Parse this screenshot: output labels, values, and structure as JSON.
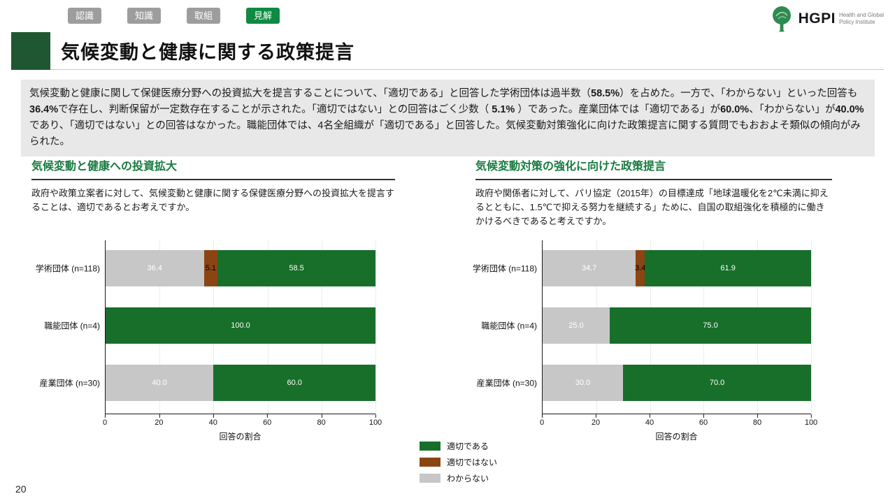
{
  "tabs": [
    {
      "id": "recognition",
      "label": "認識",
      "active": false
    },
    {
      "id": "knowledge",
      "label": "知識",
      "active": false
    },
    {
      "id": "initiatives",
      "label": "取組",
      "active": false
    },
    {
      "id": "views",
      "label": "見解",
      "active": true
    }
  ],
  "tab_colors": {
    "inactive": "#9d9d9d",
    "active": "#0e8a42"
  },
  "logo": {
    "name": "HGPI",
    "subtitle1": "Health and Global",
    "subtitle2": "Policy Institute",
    "icon": "tree-icon",
    "color": "#2e8b4f"
  },
  "title": "気候変動と健康に関する政策提言",
  "summary_segments": [
    {
      "t": "気候変動と健康に関して保健医療分野への投資拡大を提言することについて、「適切である」と回答した学術団体は過半数（",
      "b": false
    },
    {
      "t": "58.5%",
      "b": true
    },
    {
      "t": "）を占めた。一方で、「わからない」といった回答も",
      "b": false
    },
    {
      "t": "36.4%",
      "b": true
    },
    {
      "t": "で存在し、判断保留が一定数存在することが示された。「適切ではない」との回答はごく少数（ ",
      "b": false
    },
    {
      "t": "5.1%",
      "b": true
    },
    {
      "t": " ）であった。産業団体では「適切である」が",
      "b": false
    },
    {
      "t": "60.0%",
      "b": true
    },
    {
      "t": "、「わからない」が",
      "b": false
    },
    {
      "t": "40.0%",
      "b": true
    },
    {
      "t": "であり、「適切ではない」との回答はなかった。職能団体では、4名全組織が「適切である」と回答した。気候変動対策強化に向けた政策提言に関する質問でもおおよそ類似の傾向がみられた。",
      "b": false
    }
  ],
  "chart_data": [
    {
      "type": "bar",
      "orientation": "horizontal",
      "stacked": true,
      "title": "気候変動と健康への投資拡大",
      "description": "政府や政策立案者に対して、気候変動と健康に関する保健医療分野への投資拡大を提言することは、適切であるとお考えですか。",
      "categories": [
        "学術団体 (n=118)",
        "職能団体 (n=4)",
        "産業団体 (n=30)"
      ],
      "series": [
        {
          "name": "わからない",
          "color": "#c7c7c7",
          "label_color": "#ffffff",
          "values": [
            36.4,
            0,
            40.0
          ]
        },
        {
          "name": "適切ではない",
          "color": "#8b4513",
          "label_color": "#000000",
          "values": [
            5.1,
            0,
            0
          ]
        },
        {
          "name": "適切である",
          "color": "#176f2a",
          "label_color": "#ffffff",
          "values": [
            58.5,
            100.0,
            60.0
          ]
        }
      ],
      "xlabel": "回答の割合",
      "xlim": [
        0,
        100
      ],
      "xticks": [
        0,
        20,
        40,
        60,
        80,
        100
      ],
      "grid": true,
      "legend_position": "below"
    },
    {
      "type": "bar",
      "orientation": "horizontal",
      "stacked": true,
      "title": "気候変動対策の強化に向けた政策提言",
      "description": "政府や関係者に対して、パリ協定（2015年）の目標達成「地球温暖化を2℃未満に抑えるとともに、1.5℃で抑える努力を継続する」ために、自国の取組強化を積極的に働きかけるべきであると考えですか。",
      "categories": [
        "学術団体 (n=118)",
        "職能団体 (n=4)",
        "産業団体 (n=30)"
      ],
      "series": [
        {
          "name": "わからない",
          "color": "#c7c7c7",
          "label_color": "#ffffff",
          "values": [
            34.7,
            25.0,
            30.0
          ]
        },
        {
          "name": "適切ではない",
          "color": "#8b4513",
          "label_color": "#000000",
          "values": [
            3.4,
            0,
            0
          ]
        },
        {
          "name": "適切である",
          "color": "#176f2a",
          "label_color": "#ffffff",
          "values": [
            61.9,
            75.0,
            70.0
          ]
        }
      ],
      "xlabel": "回答の割合",
      "xlim": [
        0,
        100
      ],
      "xticks": [
        0,
        20,
        40,
        60,
        80,
        100
      ],
      "grid": true,
      "legend_position": "below"
    }
  ],
  "legend": [
    {
      "label": "適切である",
      "color": "#176f2a"
    },
    {
      "label": "適切ではない",
      "color": "#8b4513"
    },
    {
      "label": "わからない",
      "color": "#c7c7c7"
    }
  ],
  "page_number": "20"
}
